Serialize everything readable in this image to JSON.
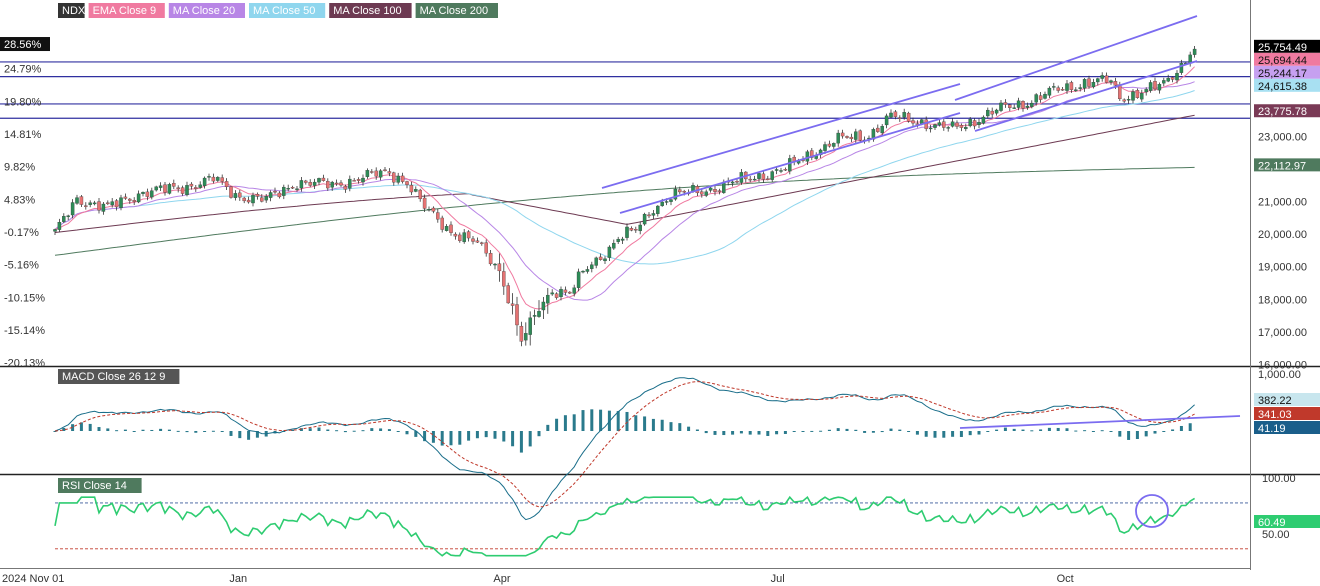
{
  "chart_data": {
    "type": "candlestick",
    "symbol": "NDX",
    "legend": [
      {
        "label": "NDX",
        "color": "#333333"
      },
      {
        "label": "EMA Close 9",
        "color": "#f07aa0"
      },
      {
        "label": "MA Close 20",
        "color": "#b886e6"
      },
      {
        "label": "MA Close 50",
        "color": "#8fd6ee"
      },
      {
        "label": "MA Close 100",
        "color": "#6d3a52"
      },
      {
        "label": "MA Close 200",
        "color": "#4f7a5e"
      }
    ],
    "price_axis": {
      "ticks": [
        "16,000.00",
        "17,000.00",
        "18,000.00",
        "19,000.00",
        "20,000.00",
        "21,000.00",
        "23,000.00"
      ],
      "range": [
        15950,
        26640
      ]
    },
    "percent_axis": {
      "ticks": [
        "28.56%",
        "24.79%",
        "19.80%",
        "14.81%",
        "9.82%",
        "4.83%",
        "-0.17%",
        "-5.16%",
        "-10.15%",
        "-15.14%",
        "-20.13%"
      ]
    },
    "value_labels": [
      {
        "text": "25,754.49",
        "color": "#000000",
        "value": 25754.49
      },
      {
        "text": "25,694.44",
        "color": "#f07aa0",
        "value": 25694.44
      },
      {
        "text": "25,244.17",
        "color": "#c6a0f0",
        "value": 25244.17
      },
      {
        "text": "24,615.38",
        "color": "#a8e0f2",
        "value": 24615.38
      },
      {
        "text": "23,775.78",
        "color": "#7a3a56",
        "value": 23775.78
      },
      {
        "text": "22,112.97",
        "color": "#4f7a5e",
        "value": 22112.97
      }
    ],
    "x_labels": [
      {
        "text": "2024 Nov 01",
        "bar": 0
      },
      {
        "text": "Jan",
        "bar": 41
      },
      {
        "text": "Apr",
        "bar": 101
      },
      {
        "text": "Jul",
        "bar": 164
      },
      {
        "text": "Oct",
        "bar": 229
      }
    ],
    "horizontal_lines": [
      25290,
      24840,
      24000,
      23560
    ],
    "macd": {
      "title": "MACD Close 26 12 9",
      "axis_ticks": [
        "1,000.00",
        "100.00"
      ],
      "labels": [
        {
          "text": "382.22",
          "color": "#c8e6ee",
          "dark": true
        },
        {
          "text": "341.03",
          "color": "#c0392b",
          "dark": false
        },
        {
          "text": "41.19",
          "color": "#1a5e8a",
          "dark": false
        }
      ]
    },
    "rsi": {
      "title": "RSI Close 14",
      "axis_ticks": [
        "50.00"
      ],
      "label": {
        "text": "60.49",
        "color": "#2ecc71"
      },
      "overbought": 70,
      "oversold": 30
    },
    "colors": {
      "up": "#2e8b57",
      "down": "#e57373",
      "channel": "#7b6cf0",
      "level": "#3030a0"
    }
  }
}
